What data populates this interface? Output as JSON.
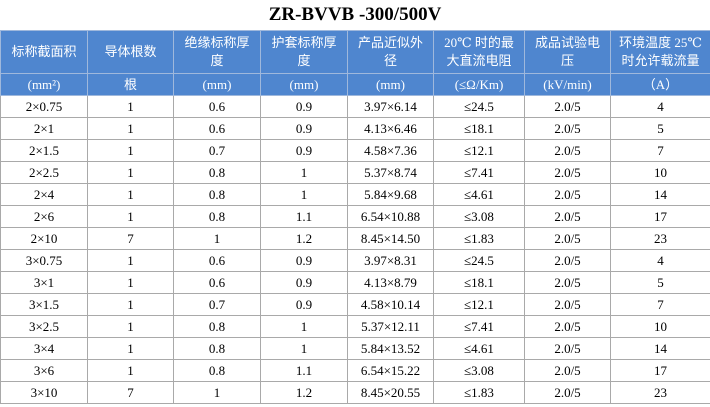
{
  "title": "ZR-BVVB -300/500V",
  "table": {
    "headers": [
      "标称截面积",
      "导体根数",
      "绝缘标称厚度",
      "护套标称厚度",
      "产品近似外径",
      "20℃ 时的最大直流电阻",
      "成品试验电压",
      "环境温度 25℃时允许载流量"
    ],
    "units": [
      "(mm²)",
      "根",
      "(mm)",
      "(mm)",
      "(mm)",
      "(≤Ω/Km)",
      "(kV/min)",
      "（A）"
    ],
    "rows": [
      [
        "2×0.75",
        "1",
        "0.6",
        "0.9",
        "3.97×6.14",
        "≤24.5",
        "2.0/5",
        "4"
      ],
      [
        "2×1",
        "1",
        "0.6",
        "0.9",
        "4.13×6.46",
        "≤18.1",
        "2.0/5",
        "5"
      ],
      [
        "2×1.5",
        "1",
        "0.7",
        "0.9",
        "4.58×7.36",
        "≤12.1",
        "2.0/5",
        "7"
      ],
      [
        "2×2.5",
        "1",
        "0.8",
        "1",
        "5.37×8.74",
        "≤7.41",
        "2.0/5",
        "10"
      ],
      [
        "2×4",
        "1",
        "0.8",
        "1",
        "5.84×9.68",
        "≤4.61",
        "2.0/5",
        "14"
      ],
      [
        "2×6",
        "1",
        "0.8",
        "1.1",
        "6.54×10.88",
        "≤3.08",
        "2.0/5",
        "17"
      ],
      [
        "2×10",
        "7",
        "1",
        "1.2",
        "8.45×14.50",
        "≤1.83",
        "2.0/5",
        "23"
      ],
      [
        "3×0.75",
        "1",
        "0.6",
        "0.9",
        "3.97×8.31",
        "≤24.5",
        "2.0/5",
        "4"
      ],
      [
        "3×1",
        "1",
        "0.6",
        "0.9",
        "4.13×8.79",
        "≤18.1",
        "2.0/5",
        "5"
      ],
      [
        "3×1.5",
        "1",
        "0.7",
        "0.9",
        "4.58×10.14",
        "≤12.1",
        "2.0/5",
        "7"
      ],
      [
        "3×2.5",
        "1",
        "0.8",
        "1",
        "5.37×12.11",
        "≤7.41",
        "2.0/5",
        "10"
      ],
      [
        "3×4",
        "1",
        "0.8",
        "1",
        "5.84×13.52",
        "≤4.61",
        "2.0/5",
        "14"
      ],
      [
        "3×6",
        "1",
        "0.8",
        "1.1",
        "6.54×15.22",
        "≤3.08",
        "2.0/5",
        "17"
      ],
      [
        "3×10",
        "7",
        "1",
        "1.2",
        "8.45×20.55",
        "≤1.83",
        "2.0/5",
        "23"
      ]
    ]
  }
}
